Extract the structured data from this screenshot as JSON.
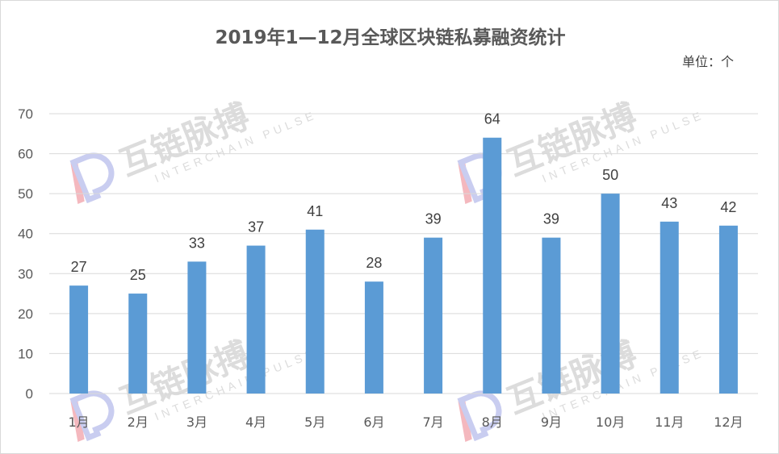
{
  "chart_data": {
    "type": "bar",
    "title": "2019年1—12月全球区块链私募融资统计",
    "unit_label": "单位：个",
    "categories": [
      "1月",
      "2月",
      "3月",
      "4月",
      "5月",
      "6月",
      "7月",
      "8月",
      "9月",
      "10月",
      "11月",
      "12月"
    ],
    "values": [
      27,
      25,
      33,
      37,
      41,
      28,
      39,
      64,
      39,
      50,
      43,
      42
    ],
    "ylim": [
      0,
      70
    ],
    "yticks": [
      "0",
      "10",
      "20",
      "30",
      "40",
      "50",
      "60",
      "70"
    ],
    "grid": true,
    "legend": "none",
    "bar_color": "#5b9bd5",
    "gridline_color": "#d9d9d9"
  },
  "watermark": {
    "text_cn": "互链脉搏",
    "text_en": "INTERCHAIN PULSE",
    "logo_colors": [
      "#f4b8be",
      "#c9cdf0"
    ]
  }
}
